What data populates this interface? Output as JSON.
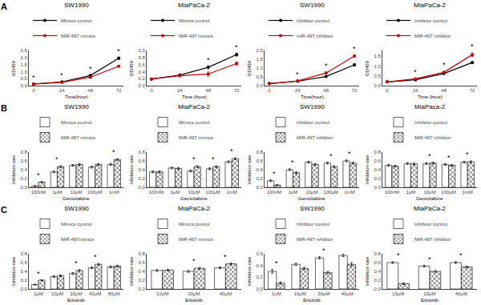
{
  "annotations": [
    {
      "text": "A"
    },
    {
      "text": "B"
    },
    {
      "text": "C"
    }
  ],
  "chart_data": [
    {
      "type": "line",
      "title": "SW1990",
      "xlabel": "Time(hour)",
      "ylabel": "OD450",
      "x": [
        0,
        24,
        48,
        72
      ],
      "xlim": [
        -4,
        76
      ],
      "xticks": [
        0,
        24,
        48,
        72
      ],
      "ylim": [
        0,
        2.5
      ],
      "yticks": [
        {
          "value": 0,
          "label": "0.0"
        },
        0.5,
        {
          "value": 1,
          "label": "1.0"
        },
        1.5,
        {
          "value": 2,
          "label": "2.0"
        },
        2.5
      ],
      "grid": false,
      "legend": "upper left",
      "series": [
        {
          "name": "Mimics control",
          "color": "#000000",
          "marker": "circle",
          "values": [
            0.12,
            0.27,
            0.72,
            1.95
          ],
          "errors": [
            0.01,
            0.03,
            0.04,
            0.08
          ]
        },
        {
          "name": "MiR-497 mimics",
          "color": "#cc0000",
          "marker": "circle",
          "values": [
            0.11,
            0.24,
            0.6,
            1.38
          ],
          "errors": [
            0.01,
            0.02,
            0.04,
            0.06
          ]
        }
      ],
      "annotations": [
        {
          "x": 0,
          "text": "*"
        },
        {
          "x": 24,
          "text": "*"
        },
        {
          "x": 48,
          "text": "*"
        },
        {
          "x": 72,
          "text": "*"
        }
      ]
    },
    {
      "type": "line",
      "title": "MiaPaCa-2",
      "xlabel": "Time (hour)",
      "ylabel": "OD450",
      "x": [
        0,
        24,
        48,
        72
      ],
      "xlim": [
        -4,
        76
      ],
      "xticks": [
        0,
        24,
        48,
        72
      ],
      "ylim": [
        0,
        1
      ],
      "yticks": [
        {
          "value": 0,
          "label": "0.0"
        },
        0.2,
        0.4,
        0.6,
        0.8,
        {
          "value": 1,
          "label": "1.0"
        }
      ],
      "grid": false,
      "legend": "upper left",
      "series": [
        {
          "name": "Mimics control",
          "color": "#000000",
          "marker": "circle",
          "values": [
            0.19,
            0.3,
            0.52,
            0.88
          ],
          "errors": [
            0.01,
            0.02,
            0.04,
            0.04
          ]
        },
        {
          "name": "MiR-497 mimics",
          "color": "#cc0000",
          "marker": "circle",
          "values": [
            0.19,
            0.28,
            0.33,
            0.63
          ],
          "errors": [
            0.01,
            0.02,
            0.06,
            0.05
          ]
        }
      ],
      "annotations": [
        {
          "x": 48,
          "text": "*"
        },
        {
          "x": 72,
          "text": "*"
        }
      ]
    },
    {
      "type": "line",
      "title": "SW1990",
      "xlabel": "Time(hour)",
      "ylabel": "OD450",
      "x": [
        0,
        24,
        48,
        72
      ],
      "xlim": [
        -4,
        76
      ],
      "xticks": [
        0,
        24,
        48,
        72
      ],
      "ylim": [
        0,
        2
      ],
      "yticks": [
        {
          "value": 0,
          "label": "0.0"
        },
        0.5,
        {
          "value": 1,
          "label": "1.0"
        },
        1.5,
        {
          "value": 2,
          "label": "2.0"
        }
      ],
      "grid": false,
      "legend": "upper left",
      "series": [
        {
          "name": "Inhibitor control",
          "color": "#000000",
          "marker": "circle",
          "values": [
            0.12,
            0.25,
            0.52,
            1.18
          ],
          "errors": [
            0.01,
            0.02,
            0.04,
            0.06
          ]
        },
        {
          "name": "miR-497 inhibitor",
          "color": "#cc0000",
          "marker": "circle",
          "values": [
            0.11,
            0.27,
            0.72,
            1.68
          ],
          "errors": [
            0.01,
            0.02,
            0.05,
            0.07
          ]
        }
      ],
      "annotations": [
        {
          "x": 24,
          "text": "*"
        },
        {
          "x": 48,
          "text": "*"
        },
        {
          "x": 72,
          "text": "*"
        }
      ]
    },
    {
      "type": "line",
      "title": "MiaPaCa-2",
      "xlabel": "Time (hour)",
      "ylabel": "OD450",
      "x": [
        0,
        24,
        48,
        72
      ],
      "xlim": [
        -4,
        76
      ],
      "xticks": [
        0,
        24,
        48,
        72
      ],
      "ylim": [
        0,
        1.8
      ],
      "yticks": [
        {
          "value": 0,
          "label": "0.0"
        },
        0.5,
        {
          "value": 1,
          "label": "1.0"
        },
        1.5
      ],
      "grid": false,
      "legend": "upper left",
      "series": [
        {
          "name": "Inhibitor control",
          "color": "#000000",
          "marker": "circle",
          "values": [
            0.19,
            0.3,
            0.62,
            1.18
          ],
          "errors": [
            0.01,
            0.02,
            0.04,
            0.05
          ]
        },
        {
          "name": "MiR-497 inhibitor",
          "color": "#cc0000",
          "marker": "circle",
          "values": [
            0.19,
            0.35,
            0.68,
            1.58
          ],
          "errors": [
            0.01,
            0.02,
            0.05,
            0.1
          ]
        }
      ],
      "annotations": [
        {
          "x": 24,
          "text": "*"
        },
        {
          "x": 48,
          "text": "*"
        },
        {
          "x": 72,
          "text": "*"
        }
      ]
    },
    {
      "type": "bar",
      "title": "SW1990",
      "xlabel": "Gemcitabine",
      "ylabel": "Inhibition rate",
      "categories": [
        "100nM",
        "1μM",
        "10μM",
        "100μM",
        "1mM"
      ],
      "ylim": [
        0,
        0.8
      ],
      "yticks": [
        {
          "value": 0,
          "label": "0.0"
        },
        0.2,
        0.4,
        0.6,
        0.8
      ],
      "grid": false,
      "legend": "upper left",
      "series": [
        {
          "name": "Mimics control",
          "color": "#ffffff",
          "values": [
            0.03,
            0.35,
            0.5,
            0.46,
            0.52
          ],
          "errors": [
            0.01,
            0.02,
            0.02,
            0.02,
            0.02
          ]
        },
        {
          "name": "MiR-497 mimics",
          "color": "#ffffff",
          "marker": "crosshatch",
          "values": [
            0.12,
            0.47,
            0.52,
            0.52,
            0.63
          ],
          "errors": [
            0.01,
            0.02,
            0.02,
            0.02,
            0.02
          ]
        }
      ],
      "annotations": [
        {
          "x": 0,
          "text": "*"
        },
        {
          "x": 1,
          "text": "*"
        },
        {
          "x": 4,
          "text": "*"
        }
      ]
    },
    {
      "type": "bar",
      "title": "MiaPaCa-2",
      "xlabel": "Gemcitabine",
      "ylabel": "Inhibition rate",
      "categories": [
        "100nM",
        "1μM",
        "10μM",
        "100μM",
        "1mM"
      ],
      "ylim": [
        0,
        0.8
      ],
      "yticks": [
        {
          "value": 0,
          "label": "0.0"
        },
        0.2,
        0.4,
        0.6,
        0.8
      ],
      "grid": false,
      "legend": "upper left",
      "series": [
        {
          "name": "Mimics control",
          "color": "#ffffff",
          "values": [
            0.35,
            0.44,
            0.37,
            0.42,
            0.58
          ],
          "errors": [
            0.02,
            0.02,
            0.02,
            0.02,
            0.02
          ]
        },
        {
          "name": "MiR-497 mimics",
          "color": "#ffffff",
          "marker": "crosshatch",
          "values": [
            0.35,
            0.43,
            0.47,
            0.47,
            0.65
          ],
          "errors": [
            0.02,
            0.02,
            0.02,
            0.02,
            0.02
          ]
        }
      ],
      "annotations": [
        {
          "x": 2,
          "text": "*"
        },
        {
          "x": 3,
          "text": "*"
        },
        {
          "x": 4,
          "text": "*"
        }
      ]
    },
    {
      "type": "bar",
      "title": "SW1990",
      "xlabel": "Gemcitabine",
      "ylabel": "Inhibition rate",
      "categories": [
        "100nM",
        "1μM",
        "10μM",
        "100μM",
        "1mM"
      ],
      "ylim": [
        0,
        0.8
      ],
      "yticks": [
        {
          "value": 0,
          "label": "0.0"
        },
        0.2,
        0.4,
        0.6,
        0.8
      ],
      "grid": false,
      "legend": "upper left",
      "series": [
        {
          "name": "Inhibitor control",
          "color": "#ffffff",
          "values": [
            0.15,
            0.4,
            0.57,
            0.55,
            0.6
          ],
          "errors": [
            0.02,
            0.02,
            0.02,
            0.02,
            0.02
          ]
        },
        {
          "name": "MiR-497 inhibitor",
          "color": "#ffffff",
          "marker": "crosshatch",
          "values": [
            0.05,
            0.33,
            0.52,
            0.47,
            0.55
          ],
          "errors": [
            0.01,
            0.02,
            0.02,
            0.02,
            0.02
          ]
        }
      ],
      "annotations": [
        {
          "x": 0,
          "text": "*"
        },
        {
          "x": 1,
          "text": "*"
        },
        {
          "x": 3,
          "text": "*"
        },
        {
          "x": 4,
          "text": "*"
        }
      ]
    },
    {
      "type": "bar",
      "title": "MiaPaca-2",
      "xlabel": "Gemcitabine",
      "ylabel": "Inhibition rate",
      "categories": [
        "100nM",
        "1μM",
        "10μM",
        "100μM",
        "1mM"
      ],
      "ylim": [
        0,
        0.8
      ],
      "yticks": [
        {
          "value": 0,
          "label": "0.0"
        },
        0.2,
        0.4,
        0.6,
        0.8
      ],
      "grid": false,
      "legend": "upper left",
      "series": [
        {
          "name": "Inhibitor control",
          "color": "#ffffff",
          "values": [
            0.5,
            0.54,
            0.54,
            0.52,
            0.57
          ],
          "errors": [
            0.02,
            0.02,
            0.02,
            0.02,
            0.02
          ]
        },
        {
          "name": "MiR-497 inhibitor",
          "color": "#ffffff",
          "marker": "crosshatch",
          "values": [
            0.48,
            0.53,
            0.55,
            0.5,
            0.58
          ],
          "errors": [
            0.02,
            0.02,
            0.02,
            0.02,
            0.02
          ]
        }
      ],
      "annotations": [
        {
          "x": 2,
          "text": "*"
        },
        {
          "x": 3,
          "text": "*"
        },
        {
          "x": 4,
          "text": "*"
        }
      ]
    },
    {
      "type": "bar",
      "title": "SW1990",
      "xlabel": "Erlotinib",
      "ylabel": "Inhibition rate",
      "categories": [
        "1μM",
        "10μM",
        "20μM",
        "40μM",
        "80μM"
      ],
      "ylim": [
        0,
        0.8
      ],
      "yticks": [
        {
          "value": 0,
          "label": "0.0"
        },
        0.2,
        0.4,
        0.6,
        0.8
      ],
      "grid": false,
      "legend": "upper left",
      "series": [
        {
          "name": "Mimics control",
          "color": "#ffffff",
          "values": [
            0.1,
            0.28,
            0.35,
            0.48,
            0.5
          ],
          "errors": [
            0.01,
            0.02,
            0.02,
            0.02,
            0.02
          ]
        },
        {
          "name": "MiR-497mimics",
          "color": "#ffffff",
          "marker": "crosshatch",
          "values": [
            0.2,
            0.3,
            0.42,
            0.56,
            0.52
          ],
          "errors": [
            0.01,
            0.02,
            0.02,
            0.02,
            0.02
          ]
        }
      ],
      "annotations": [
        {
          "x": 0,
          "text": "*"
        },
        {
          "x": 2,
          "text": "*"
        },
        {
          "x": 3,
          "text": "*"
        }
      ]
    },
    {
      "type": "bar",
      "title": "MiaPaCa-2",
      "xlabel": "Erlotinib",
      "ylabel": "Inhibition rate",
      "categories": [
        "10μM",
        "20μM",
        "40μM"
      ],
      "ylim": [
        0,
        0.8
      ],
      "yticks": [
        {
          "value": 0,
          "label": "0.0"
        },
        0.2,
        0.4,
        0.6,
        0.8
      ],
      "grid": false,
      "legend": "upper left",
      "series": [
        {
          "name": "Mimics control",
          "color": "#ffffff",
          "values": [
            0.42,
            0.4,
            0.48
          ],
          "errors": [
            0.02,
            0.02,
            0.02
          ]
        },
        {
          "name": "MiR-497 mimics",
          "color": "#ffffff",
          "marker": "crosshatch",
          "values": [
            0.43,
            0.47,
            0.57
          ],
          "errors": [
            0.02,
            0.02,
            0.02
          ]
        }
      ],
      "annotations": [
        {
          "x": 1,
          "text": "*"
        },
        {
          "x": 2,
          "text": "*"
        }
      ]
    },
    {
      "type": "bar",
      "title": "SW1990",
      "xlabel": "Erlotinib",
      "ylabel": "Inhibition rate",
      "categories": [
        "1μM",
        "10μM",
        "20μM",
        "40μM"
      ],
      "ylim": [
        0,
        0.6
      ],
      "yticks": [
        {
          "value": 0,
          "label": "0.0"
        },
        0.2,
        0.4,
        0.6
      ],
      "grid": false,
      "legend": "upper left",
      "series": [
        {
          "name": "Inhibitor control",
          "color": "#ffffff",
          "values": [
            0.3,
            0.42,
            0.53,
            0.57
          ],
          "errors": [
            0.03,
            0.02,
            0.02,
            0.02
          ]
        },
        {
          "name": "MiR-497 inhibitor",
          "color": "#ffffff",
          "marker": "crosshatch",
          "values": [
            0.1,
            0.35,
            0.28,
            0.42
          ],
          "errors": [
            0.02,
            0.02,
            0.02,
            0.03
          ]
        }
      ],
      "annotations": [
        {
          "x": 0,
          "text": "*"
        },
        {
          "x": 2,
          "text": "*"
        },
        {
          "x": 3,
          "text": "*"
        }
      ]
    },
    {
      "type": "bar",
      "title": "MiaPaCa-2",
      "xlabel": "Erlotinib",
      "ylabel": "Inhibition rate",
      "categories": [
        "10μM",
        "20μM",
        "40μM"
      ],
      "ylim": [
        0,
        0.8
      ],
      "yticks": [
        {
          "value": 0,
          "label": "0.0"
        },
        0.2,
        0.4,
        0.6,
        0.8
      ],
      "grid": false,
      "legend": "upper left",
      "series": [
        {
          "name": "Inhibitor control",
          "color": "#ffffff",
          "values": [
            0.6,
            0.52,
            0.6
          ],
          "errors": [
            0.02,
            0.02,
            0.02
          ]
        },
        {
          "name": "MiR-497 inhibitor",
          "color": "#ffffff",
          "marker": "crosshatch",
          "values": [
            0.12,
            0.4,
            0.5
          ],
          "errors": [
            0.02,
            0.02,
            0.02
          ]
        }
      ],
      "annotations": [
        {
          "x": 0,
          "text": "*"
        },
        {
          "x": 1,
          "text": "*"
        },
        {
          "x": 2,
          "text": "*"
        }
      ]
    }
  ]
}
